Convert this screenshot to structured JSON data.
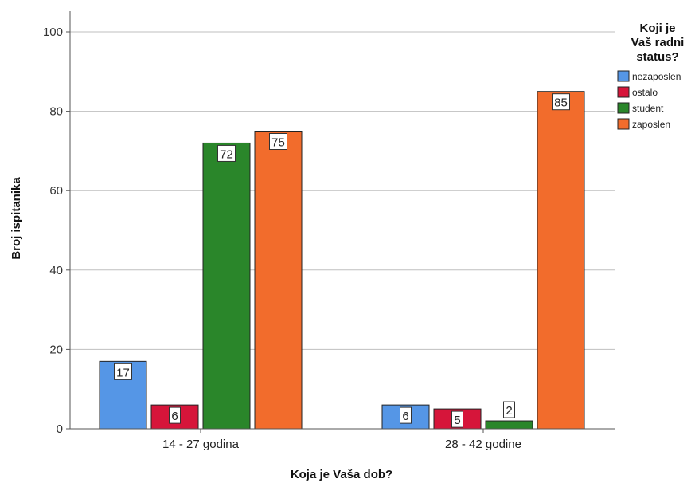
{
  "chart_data": {
    "type": "bar",
    "xlabel": "Koja je Vaša dob?",
    "ylabel": "Broj ispitanika",
    "ylim": [
      0,
      105
    ],
    "yticks": [
      0,
      20,
      40,
      60,
      80,
      100
    ],
    "grid": true,
    "legend_position": "top-right",
    "legend_title_lines": [
      "Koji je",
      "Vaš radni",
      "status?"
    ],
    "categories": [
      "14 - 27 godina",
      "28 - 42 godine"
    ],
    "series": [
      {
        "name": "nezaposlen",
        "color": "#5596e6",
        "values": [
          17,
          6
        ]
      },
      {
        "name": "ostalo",
        "color": "#d6153a",
        "values": [
          6,
          5
        ]
      },
      {
        "name": "student",
        "color": "#2a862a",
        "values": [
          72,
          2
        ]
      },
      {
        "name": "zaposlen",
        "color": "#f26c2c",
        "values": [
          75,
          85
        ]
      }
    ]
  }
}
